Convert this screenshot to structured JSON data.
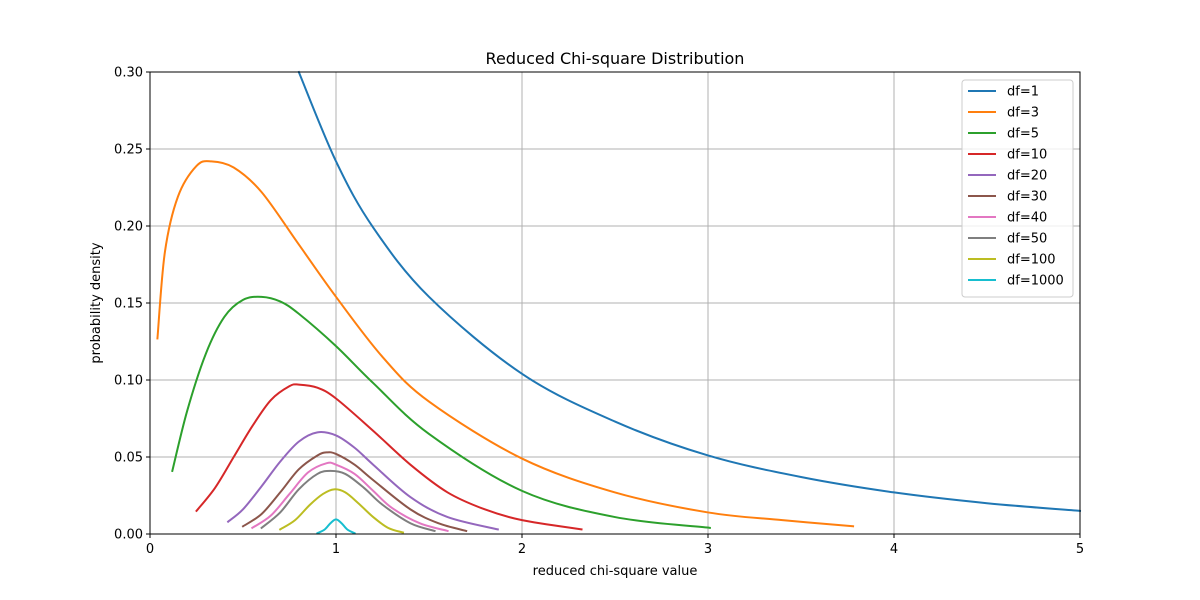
{
  "chart_data": {
    "type": "line",
    "title": "Reduced Chi-square Distribution",
    "xlabel": "reduced chi-square value",
    "ylabel": "probability density",
    "xlim": [
      0,
      5
    ],
    "ylim": [
      0,
      0.3
    ],
    "xticks": [
      0,
      1,
      2,
      3,
      4,
      5
    ],
    "yticks": [
      0.0,
      0.05,
      0.1,
      0.15,
      0.2,
      0.25,
      0.3
    ],
    "xtick_labels": [
      "0",
      "1",
      "2",
      "3",
      "4",
      "5"
    ],
    "ytick_labels": [
      "0.00",
      "0.05",
      "0.10",
      "0.15",
      "0.20",
      "0.25",
      "0.30"
    ],
    "grid": true,
    "legend_position": "top-right",
    "series": [
      {
        "name": "df=1",
        "color": "#1f77b4",
        "x": [
          0.8,
          1.0,
          1.2,
          1.5,
          2.0,
          2.5,
          3.0,
          3.5,
          4.0,
          4.5,
          5.0
        ],
        "y": [
          0.3,
          0.242,
          0.199,
          0.154,
          0.104,
          0.073,
          0.051,
          0.037,
          0.027,
          0.02,
          0.015
        ]
      },
      {
        "name": "df=3",
        "color": "#ff7f0e",
        "x": [
          0.04,
          0.08,
          0.15,
          0.25,
          0.33,
          0.45,
          0.6,
          0.8,
          1.0,
          1.25,
          1.5,
          2.0,
          2.5,
          3.0,
          3.4,
          3.78
        ],
        "y": [
          0.127,
          0.183,
          0.219,
          0.239,
          0.242,
          0.238,
          0.222,
          0.188,
          0.154,
          0.115,
          0.086,
          0.049,
          0.027,
          0.014,
          0.009,
          0.005
        ]
      },
      {
        "name": "df=5",
        "color": "#2 ca02c",
        "x": [
          0.12,
          0.2,
          0.3,
          0.4,
          0.5,
          0.6,
          0.7,
          0.8,
          1.0,
          1.2,
          1.5,
          2.0,
          2.5,
          3.01
        ],
        "y": [
          0.041,
          0.08,
          0.117,
          0.141,
          0.152,
          0.154,
          0.151,
          0.143,
          0.122,
          0.098,
          0.065,
          0.028,
          0.011,
          0.004
        ]
      },
      {
        "name": "df=10",
        "color": "#d62728",
        "x": [
          0.25,
          0.35,
          0.45,
          0.55,
          0.65,
          0.75,
          0.8,
          0.9,
          1.0,
          1.2,
          1.4,
          1.6,
          1.8,
          2.0,
          2.32
        ],
        "y": [
          0.015,
          0.03,
          0.05,
          0.07,
          0.087,
          0.096,
          0.097,
          0.095,
          0.088,
          0.067,
          0.045,
          0.027,
          0.016,
          0.009,
          0.003
        ]
      },
      {
        "name": "df=20",
        "color": "#9467bd",
        "x": [
          0.42,
          0.5,
          0.6,
          0.7,
          0.8,
          0.9,
          1.0,
          1.1,
          1.2,
          1.4,
          1.6,
          1.87
        ],
        "y": [
          0.008,
          0.016,
          0.031,
          0.047,
          0.06,
          0.066,
          0.064,
          0.056,
          0.045,
          0.024,
          0.011,
          0.003
        ]
      },
      {
        "name": "df=30",
        "color": "#8c564b",
        "x": [
          0.5,
          0.6,
          0.7,
          0.8,
          0.9,
          0.95,
          1.0,
          1.1,
          1.2,
          1.4,
          1.55,
          1.7
        ],
        "y": [
          0.005,
          0.013,
          0.027,
          0.042,
          0.051,
          0.053,
          0.052,
          0.045,
          0.035,
          0.016,
          0.007,
          0.002
        ]
      },
      {
        "name": "df=40",
        "color": "#e377c2",
        "x": [
          0.55,
          0.65,
          0.75,
          0.85,
          0.95,
          1.0,
          1.1,
          1.2,
          1.3,
          1.45,
          1.6
        ],
        "y": [
          0.004,
          0.012,
          0.026,
          0.04,
          0.046,
          0.045,
          0.039,
          0.028,
          0.017,
          0.007,
          0.002
        ]
      },
      {
        "name": "df=50",
        "color": "#7f7f7f",
        "x": [
          0.6,
          0.7,
          0.8,
          0.9,
          0.97,
          1.05,
          1.15,
          1.25,
          1.4,
          1.53
        ],
        "y": [
          0.004,
          0.014,
          0.029,
          0.039,
          0.041,
          0.039,
          0.03,
          0.019,
          0.007,
          0.002
        ]
      },
      {
        "name": "df=100",
        "color": "#bcbd22",
        "x": [
          0.7,
          0.78,
          0.86,
          0.93,
          0.99,
          1.05,
          1.12,
          1.2,
          1.28,
          1.36
        ],
        "y": [
          0.003,
          0.009,
          0.019,
          0.026,
          0.029,
          0.027,
          0.02,
          0.011,
          0.004,
          0.001
        ]
      },
      {
        "name": "df=1000",
        "color": "#17becf",
        "x": [
          0.9,
          0.94,
          0.97,
          1.0,
          1.03,
          1.06,
          1.1
        ],
        "y": [
          0.0005,
          0.003,
          0.007,
          0.0095,
          0.007,
          0.003,
          0.0005
        ]
      }
    ]
  }
}
